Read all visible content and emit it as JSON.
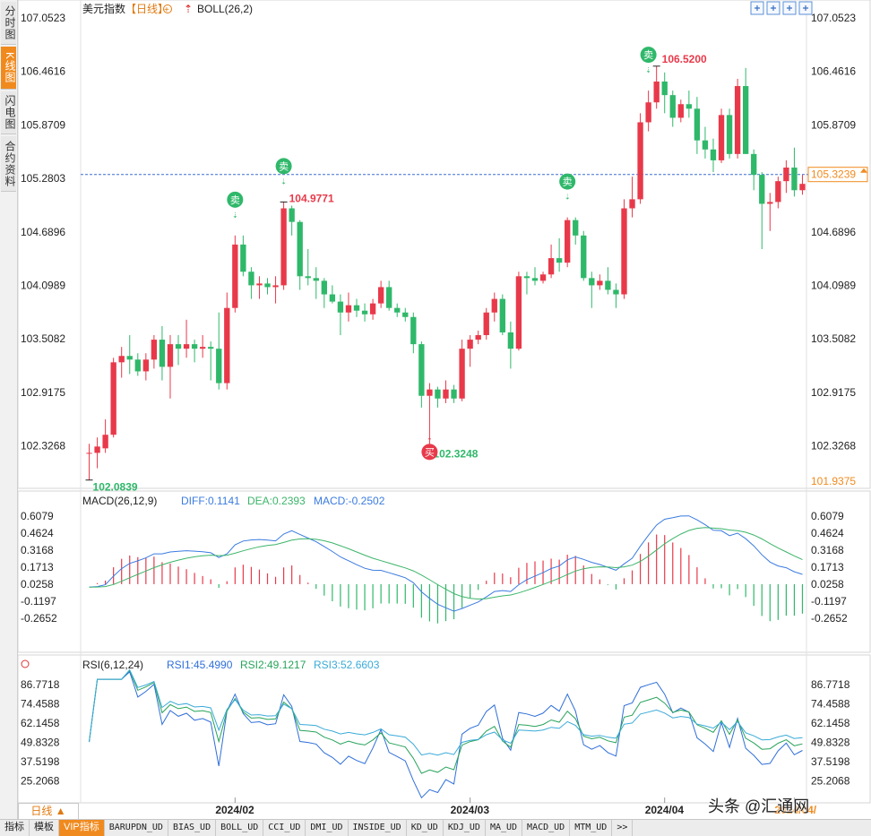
{
  "left_tabs": [
    "分时图",
    "K线图",
    "闪电图",
    "合约资料"
  ],
  "header": {
    "name": "美元指数",
    "period": "【日线】",
    "indicator": "BOLL(26,2)"
  },
  "toolbar_icons": [
    "move-icon",
    "zoom-in-icon",
    "zoom-out-icon",
    "settings-icon"
  ],
  "chart_data": [
    {
      "type": "candlestick",
      "yticks": [
        "107.0523",
        "106.4616",
        "105.8709",
        "105.2803",
        "104.6896",
        "104.0989",
        "103.5082",
        "102.9175",
        "102.3268"
      ],
      "yrange": [
        101.9375,
        107.0523
      ],
      "last_price": "105.3239",
      "low_axis_label": "101.9375",
      "xtick_labels": [
        "2024/02",
        "2024/03",
        "2024/04",
        "2024/04/"
      ],
      "annotations": {
        "high1": "104.9771",
        "high2": "106.5200",
        "low1": "102.0839",
        "low2": "102.3248"
      },
      "signals": [
        {
          "label": "卖",
          "kind": "sell"
        },
        {
          "label": "卖",
          "kind": "sell"
        },
        {
          "label": "卖",
          "kind": "sell"
        },
        {
          "label": "卖",
          "kind": "sell"
        },
        {
          "label": "买",
          "kind": "buy"
        }
      ],
      "candles": [
        [
          102.25,
          102.35,
          101.95,
          102.25
        ],
        [
          102.25,
          102.42,
          102.08,
          102.32
        ],
        [
          102.3,
          102.62,
          102.25,
          102.45
        ],
        [
          102.45,
          103.3,
          102.42,
          103.25
        ],
        [
          103.25,
          103.42,
          103.08,
          103.32
        ],
        [
          103.32,
          103.55,
          103.12,
          103.28
        ],
        [
          103.28,
          103.35,
          103.1,
          103.15
        ],
        [
          103.15,
          103.35,
          103.05,
          103.28
        ],
        [
          103.28,
          103.55,
          103.18,
          103.5
        ],
        [
          103.5,
          103.65,
          103.05,
          103.2
        ],
        [
          103.2,
          103.55,
          102.85,
          103.45
        ],
        [
          103.45,
          103.55,
          103.22,
          103.4
        ],
        [
          103.4,
          103.72,
          103.3,
          103.45
        ],
        [
          103.45,
          103.5,
          103.25,
          103.4
        ],
        [
          103.4,
          103.55,
          103.3,
          103.42
        ],
        [
          103.42,
          103.48,
          103.05,
          103.4
        ],
        [
          103.4,
          103.8,
          102.95,
          103.02
        ],
        [
          103.02,
          104.02,
          102.95,
          103.85
        ],
        [
          103.85,
          104.65,
          103.8,
          104.55
        ],
        [
          104.55,
          104.65,
          104.2,
          104.25
        ],
        [
          104.25,
          104.3,
          103.95,
          104.1
        ],
        [
          104.1,
          104.2,
          103.95,
          104.12
        ],
        [
          104.12,
          104.18,
          104.0,
          104.08
        ],
        [
          104.08,
          104.2,
          103.9,
          104.1
        ],
        [
          104.1,
          105.02,
          104.05,
          104.95
        ],
        [
          104.95,
          104.98,
          104.65,
          104.8
        ],
        [
          104.8,
          104.82,
          104.05,
          104.2
        ],
        [
          104.2,
          104.5,
          104.1,
          104.18
        ],
        [
          104.18,
          104.3,
          103.95,
          104.15
        ],
        [
          104.15,
          104.18,
          103.85,
          104.0
        ],
        [
          104.0,
          104.1,
          103.9,
          103.92
        ],
        [
          103.92,
          104.0,
          103.55,
          103.8
        ],
        [
          103.8,
          104.02,
          103.7,
          103.88
        ],
        [
          103.88,
          103.95,
          103.75,
          103.82
        ],
        [
          103.82,
          103.9,
          103.7,
          103.78
        ],
        [
          103.78,
          103.95,
          103.72,
          103.9
        ],
        [
          103.9,
          104.15,
          103.85,
          104.08
        ],
        [
          104.08,
          104.15,
          103.82,
          103.85
        ],
        [
          103.85,
          103.9,
          103.75,
          103.8
        ],
        [
          103.8,
          103.85,
          103.7,
          103.75
        ],
        [
          103.75,
          103.8,
          103.35,
          103.45
        ],
        [
          103.45,
          103.48,
          102.75,
          102.88
        ],
        [
          102.88,
          103.02,
          102.32,
          102.95
        ],
        [
          102.95,
          102.98,
          102.75,
          102.85
        ],
        [
          102.85,
          103.05,
          102.8,
          102.95
        ],
        [
          102.95,
          103.0,
          102.8,
          102.85
        ],
        [
          102.85,
          103.5,
          102.82,
          103.4
        ],
        [
          103.4,
          103.55,
          103.2,
          103.5
        ],
        [
          103.5,
          103.6,
          103.45,
          103.55
        ],
        [
          103.55,
          103.85,
          103.5,
          103.8
        ],
        [
          103.8,
          104.02,
          103.7,
          103.95
        ],
        [
          103.95,
          104.0,
          103.55,
          103.58
        ],
        [
          103.58,
          103.7,
          103.18,
          103.4
        ],
        [
          103.4,
          104.25,
          103.38,
          104.2
        ],
        [
          104.2,
          104.25,
          104.0,
          104.18
        ],
        [
          104.18,
          104.3,
          104.1,
          104.15
        ],
        [
          104.15,
          104.25,
          104.12,
          104.22
        ],
        [
          104.22,
          104.55,
          104.18,
          104.4
        ],
        [
          104.4,
          104.62,
          104.25,
          104.35
        ],
        [
          104.35,
          104.85,
          104.3,
          104.82
        ],
        [
          104.82,
          104.85,
          104.55,
          104.65
        ],
        [
          104.65,
          104.7,
          104.15,
          104.18
        ],
        [
          104.18,
          104.25,
          103.85,
          104.1
        ],
        [
          104.1,
          104.22,
          104.05,
          104.15
        ],
        [
          104.15,
          104.3,
          104.0,
          104.05
        ],
        [
          104.05,
          104.12,
          103.85,
          104.0
        ],
        [
          104.0,
          105.05,
          103.95,
          104.95
        ],
        [
          104.95,
          105.3,
          104.85,
          105.05
        ],
        [
          105.05,
          106.0,
          105.0,
          105.9
        ],
        [
          105.9,
          106.25,
          105.8,
          106.12
        ],
        [
          106.12,
          106.52,
          106.05,
          106.35
        ],
        [
          106.35,
          106.45,
          106.0,
          106.2
        ],
        [
          106.2,
          106.25,
          105.85,
          105.95
        ],
        [
          105.95,
          106.15,
          105.9,
          106.1
        ],
        [
          106.1,
          106.25,
          105.95,
          106.05
        ],
        [
          106.05,
          106.18,
          105.55,
          105.7
        ],
        [
          105.7,
          105.85,
          105.5,
          105.6
        ],
        [
          105.6,
          105.72,
          105.35,
          105.48
        ],
        [
          105.48,
          106.05,
          105.45,
          105.98
        ],
        [
          105.98,
          106.05,
          105.5,
          105.55
        ],
        [
          105.55,
          106.38,
          105.5,
          106.3
        ],
        [
          106.3,
          106.5,
          105.55,
          105.55
        ],
        [
          105.55,
          105.6,
          105.15,
          105.32
        ],
        [
          105.32,
          105.35,
          104.5,
          105.0
        ],
        [
          105.0,
          105.12,
          104.7,
          105.02
        ],
        [
          105.02,
          105.3,
          104.95,
          105.25
        ],
        [
          105.25,
          105.48,
          105.12,
          105.4
        ],
        [
          105.4,
          105.62,
          105.08,
          105.15
        ],
        [
          105.15,
          105.32,
          105.1,
          105.22
        ]
      ]
    },
    {
      "type": "bar-line",
      "title": "MACD(26,12,9)",
      "diff_label": "DIFF:0.1141",
      "dea_label": "DEA:0.2393",
      "macd_label": "MACD:-0.2502",
      "yticks": [
        "0.6079",
        "0.4624",
        "0.3168",
        "0.1713",
        "0.0258",
        "-0.1197",
        "-0.2652"
      ],
      "yrange": [
        -0.42,
        0.67
      ]
    },
    {
      "type": "line",
      "title": "RSI(6,12,24)",
      "rsi1_label": "RSI1:45.4990",
      "rsi2_label": "RSI2:49.1217",
      "rsi3_label": "RSI3:52.6603",
      "yticks": [
        "86.7718",
        "74.4588",
        "62.1458",
        "49.8328",
        "37.5198",
        "25.2068"
      ],
      "yrange": [
        12.9,
        93.5
      ]
    }
  ],
  "colors": {
    "up": "#e8394a",
    "down": "#2fb86a",
    "diff": "#3a7be0",
    "dea": "#3cb56a",
    "rsi1": "#2f6fd8",
    "rsi2": "#27a35a",
    "rsi3": "#3aaad8",
    "accent": "#f08a1e"
  },
  "bottom_tabs": {
    "period": "日线",
    "items": [
      "指标",
      "模板",
      "VIP指标",
      "BARUPDN_UD",
      "BIAS_UD",
      "BOLL_UD",
      "CCI_UD",
      "DMI_UD",
      "INSIDE_UD",
      "KD_UD",
      "KDJ_UD",
      "MA_UD",
      "MACD_UD",
      "MTM_UD",
      ">>"
    ]
  },
  "watermark": "头条 @汇通网"
}
